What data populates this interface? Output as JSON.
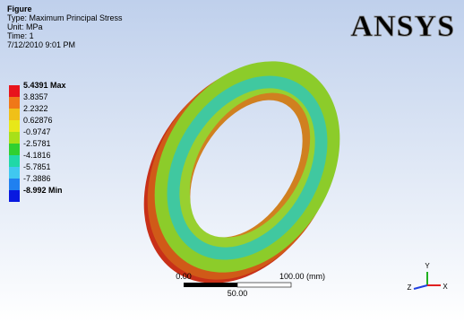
{
  "header": {
    "title": "Figure",
    "type": "Type: Maximum Principal Stress",
    "unit": "Unit: MPa",
    "time": "Time: 1",
    "date": "7/12/2010 9:01 PM"
  },
  "logo": "ANSYS",
  "legend": {
    "labels": [
      "5.4391 Max",
      "3.8357",
      "2.2322",
      "0.62876",
      "-0.9747",
      "-2.5781",
      "-4.1816",
      "-5.7851",
      "-7.3886",
      "-8.992 Min"
    ],
    "colors": [
      "#e8141c",
      "#f07818",
      "#f0c018",
      "#e8e818",
      "#a8e018",
      "#30d030",
      "#20d8a8",
      "#40c8f0",
      "#2080f0",
      "#0818e0"
    ]
  },
  "scale_bar": {
    "start": "0.00",
    "end": "100.00 (mm)",
    "mid": "50.00"
  },
  "triad": {
    "y": "Y",
    "z": "Z",
    "x": "X"
  }
}
